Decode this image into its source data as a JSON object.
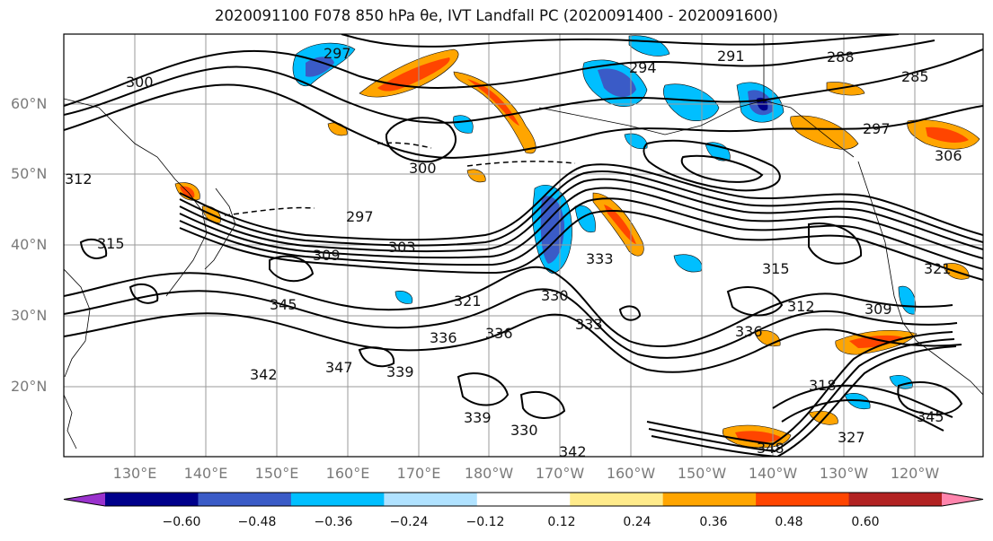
{
  "title_text": "2020091100 F078 850 hPa θe, IVT Landfall PC (2020091400 - 2020091600)",
  "lat_labels": [
    "60°N",
    "50°N",
    "40°N",
    "30°N",
    "20°N"
  ],
  "lon_labels": [
    "130°E",
    "140°E",
    "150°E",
    "160°E",
    "170°E",
    "180°W",
    "170°W",
    "160°W",
    "150°W",
    "140°W",
    "130°W",
    "120°W"
  ],
  "contour_labels": [
    "297",
    "291",
    "294",
    "288",
    "285",
    "300",
    "300",
    "297",
    "303",
    "309",
    "312",
    "315",
    "306",
    "297",
    "333",
    "330",
    "321",
    "336",
    "333",
    "345",
    "342",
    "347",
    "339",
    "336",
    "330",
    "339",
    "342",
    "318",
    "327",
    "345",
    "348",
    "309",
    "321",
    "336",
    "315",
    "312"
  ],
  "colorbar": {
    "ticks": [
      "−0.60",
      "−0.48",
      "−0.36",
      "−0.24",
      "−0.12",
      "0.12",
      "0.24",
      "0.36",
      "0.48",
      "0.60"
    ],
    "colors": [
      "#9a32cd",
      "#00008b",
      "#3a5bc7",
      "#00bfff",
      "#b0e2ff",
      "#ffffff",
      "#ffeb8b",
      "#ffa500",
      "#ff4500",
      "#b22222",
      "#ff85ad"
    ]
  }
}
